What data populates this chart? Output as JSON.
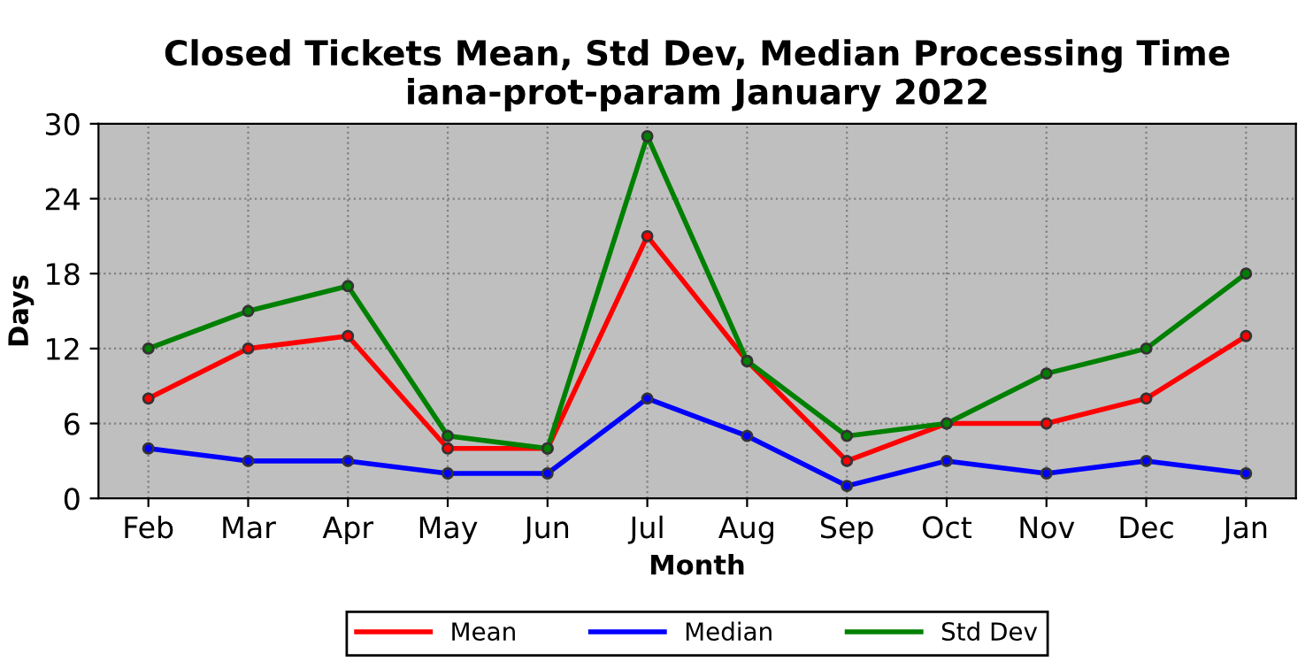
{
  "chart_data": {
    "type": "line",
    "title": "Closed Tickets Mean, Std Dev, Median Processing Time\niana-prot-param January 2022",
    "xlabel": "Month",
    "ylabel": "Days",
    "categories": [
      "Feb",
      "Mar",
      "Apr",
      "May",
      "Jun",
      "Jul",
      "Aug",
      "Sep",
      "Oct",
      "Nov",
      "Dec",
      "Jan"
    ],
    "series": [
      {
        "name": "Mean",
        "color": "#ff0000",
        "values": [
          8,
          12,
          13,
          4,
          4,
          21,
          11,
          3,
          6,
          6,
          8,
          13
        ]
      },
      {
        "name": "Median",
        "color": "#0000ff",
        "values": [
          4,
          3,
          3,
          2,
          2,
          8,
          5,
          1,
          3,
          2,
          3,
          2
        ]
      },
      {
        "name": "Std Dev",
        "color": "#008000",
        "values": [
          12,
          15,
          17,
          5,
          4,
          29,
          11,
          5,
          6,
          10,
          12,
          18
        ]
      }
    ],
    "ylim": [
      0,
      30
    ],
    "yticks": [
      0,
      6,
      12,
      18,
      24,
      30
    ],
    "grid": true,
    "legend": "bottom",
    "marker": "circle",
    "line_style": "solid"
  }
}
